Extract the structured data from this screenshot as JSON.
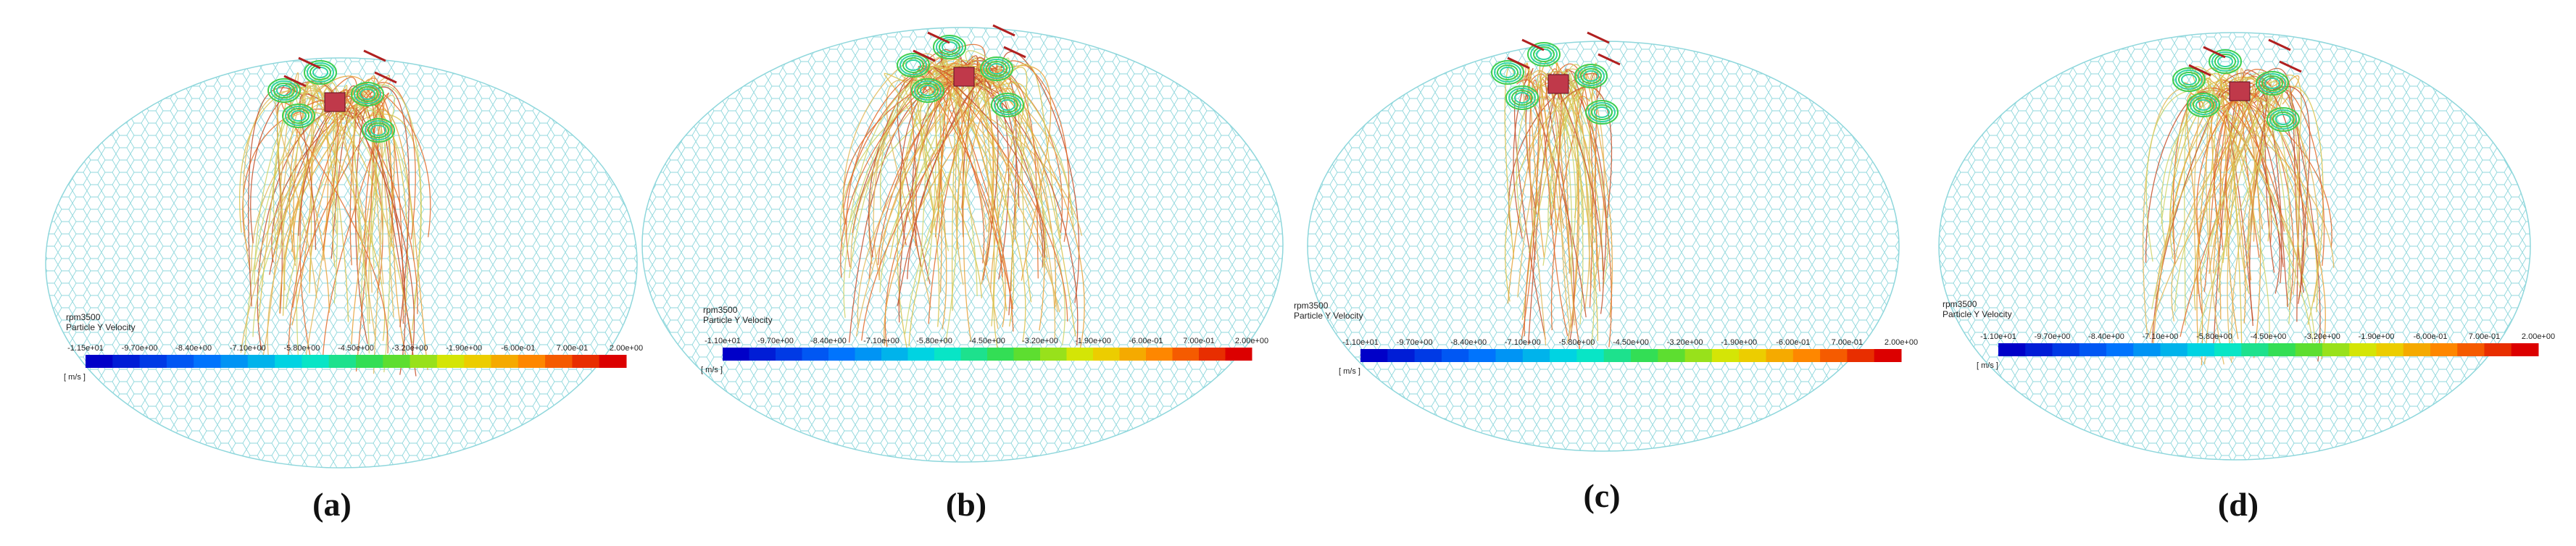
{
  "panels": [
    {
      "caption": "(a)",
      "legend": {
        "case": "rpm3500",
        "quantity": "Particle Y Velocity",
        "unit": "[ m/s ]",
        "ticks": [
          "-1.15e+01",
          "-9.70e+00",
          "-8.40e+00",
          "-7.10e+00",
          "-5.80e+00",
          "-4.50e+00",
          "-3.20e+00",
          "-1.90e+00",
          "-6.00e-01",
          "7.00e-01",
          "2.00e+00"
        ]
      }
    },
    {
      "caption": "(b)",
      "legend": {
        "case": "rpm3500",
        "quantity": "Particle Y Velocity",
        "unit": "[ m/s ]",
        "ticks": [
          "-1.10e+01",
          "-9.70e+00",
          "-8.40e+00",
          "-7.10e+00",
          "-5.80e+00",
          "-4.50e+00",
          "-3.20e+00",
          "-1.90e+00",
          "-6.00e-01",
          "7.00e-01",
          "2.00e+00"
        ]
      }
    },
    {
      "caption": "(c)",
      "legend": {
        "case": "rpm3500",
        "quantity": "Particle Y Velocity",
        "unit": "[ m/s ]",
        "ticks": [
          "-1.10e+01",
          "-9.70e+00",
          "-8.40e+00",
          "-7.10e+00",
          "-5.80e+00",
          "-4.50e+00",
          "-3.20e+00",
          "-1.90e+00",
          "-6.00e-01",
          "7.00e-01",
          "2.00e+00"
        ]
      }
    },
    {
      "caption": "(d)",
      "legend": {
        "case": "rpm3500",
        "quantity": "Particle Y Velocity",
        "unit": "[ m/s ]",
        "ticks": [
          "-1.10e+01",
          "-9.70e+00",
          "-8.40e+00",
          "-7.10e+00",
          "-5.80e+00",
          "-4.50e+00",
          "-3.20e+00",
          "-1.90e+00",
          "-6.00e-01",
          "7.00e-01",
          "2.00e+00"
        ]
      }
    }
  ]
}
